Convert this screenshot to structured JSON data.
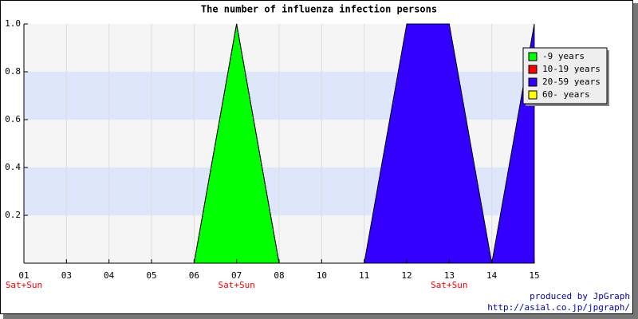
{
  "chart_data": {
    "type": "area",
    "title": "The number of influenza infection persons",
    "categories": [
      "01",
      "03",
      "04",
      "05",
      "06",
      "07",
      "08",
      "10",
      "11",
      "12",
      "13",
      "14",
      "15"
    ],
    "x_sublabels": [
      "Sat+Sun",
      null,
      null,
      null,
      null,
      "Sat+Sun",
      null,
      null,
      null,
      null,
      "Sat+Sun",
      null,
      null
    ],
    "series": [
      {
        "name": "-9 years",
        "color": "#00ff00",
        "values": [
          0,
          0,
          0,
          0,
          0,
          1,
          0,
          0,
          0,
          0,
          0,
          0,
          0
        ]
      },
      {
        "name": "10-19 years",
        "color": "#ff0000",
        "values": [
          0,
          0,
          0,
          0,
          0,
          0,
          0,
          0,
          0,
          0,
          0,
          0,
          0
        ]
      },
      {
        "name": "20-59 years",
        "color": "#3300ff",
        "values": [
          0,
          0,
          0,
          0,
          0,
          0,
          0,
          0,
          0,
          1,
          1,
          0,
          1
        ]
      },
      {
        "name": "60- years",
        "color": "#ffff00",
        "values": [
          0,
          0,
          0,
          0,
          0,
          0,
          0,
          0,
          0,
          0,
          0,
          0,
          0
        ]
      }
    ],
    "stacked": true,
    "ylim": [
      0,
      1
    ],
    "yticks": [
      0.2,
      0.4,
      0.6,
      0.8,
      {
        "value": 1,
        "label": "1.0"
      }
    ],
    "grid": true,
    "legend": "top-right",
    "footer": [
      "produced by JpGraph",
      "http://asial.co.jp/jpgraph/"
    ]
  }
}
